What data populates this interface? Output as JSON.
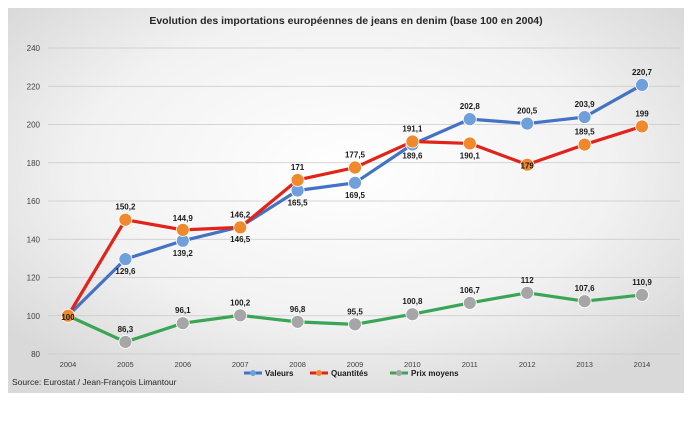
{
  "chart_data": {
    "type": "line",
    "title": "Evolution des importations européennes de jeans en denim (base 100 en 2004)",
    "source": "Source: Eurostat / Jean-François Limantour",
    "x": [
      "2004",
      "2005",
      "2006",
      "2007",
      "2008",
      "2009",
      "2010",
      "2011",
      "2012",
      "2013",
      "2014"
    ],
    "ylim": [
      80,
      240
    ],
    "yticks": [
      80,
      100,
      120,
      140,
      160,
      180,
      200,
      220,
      240
    ],
    "grid": true,
    "legend_position": "bottom",
    "series": [
      {
        "name": "Valeurs",
        "line_color": "#4472c4",
        "marker_color": "#6fa0dc",
        "values": [
          100,
          129.6,
          139.2,
          146.5,
          165.5,
          169.5,
          189.6,
          202.8,
          200.5,
          203.9,
          220.7
        ],
        "labels": [
          "",
          "129,6",
          "139,2",
          "146,5",
          "165,5",
          "169,5",
          "189,6",
          "202,8",
          "200,5",
          "203,9",
          "220,7"
        ]
      },
      {
        "name": "Quantités",
        "line_color": "#e2231a",
        "marker_color": "#f0892b",
        "values": [
          100,
          150.2,
          144.9,
          146.2,
          171,
          177.5,
          191.1,
          190.1,
          179,
          189.5,
          199
        ],
        "labels": [
          "100",
          "150,2",
          "144,9",
          "146,2",
          "171",
          "177,5",
          "191,1",
          "190,1",
          "179",
          "189,5",
          "199"
        ]
      },
      {
        "name": "Prix moyens",
        "line_color": "#3aa655",
        "marker_color": "#a6a6a6",
        "values": [
          100,
          86.3,
          96.1,
          100.2,
          96.8,
          95.5,
          100.8,
          106.7,
          112,
          107.6,
          110.9
        ],
        "labels": [
          "",
          "86,3",
          "96,1",
          "100,2",
          "96,8",
          "95,5",
          "100,8",
          "106,7",
          "112",
          "107,6",
          "110,9"
        ]
      }
    ]
  }
}
